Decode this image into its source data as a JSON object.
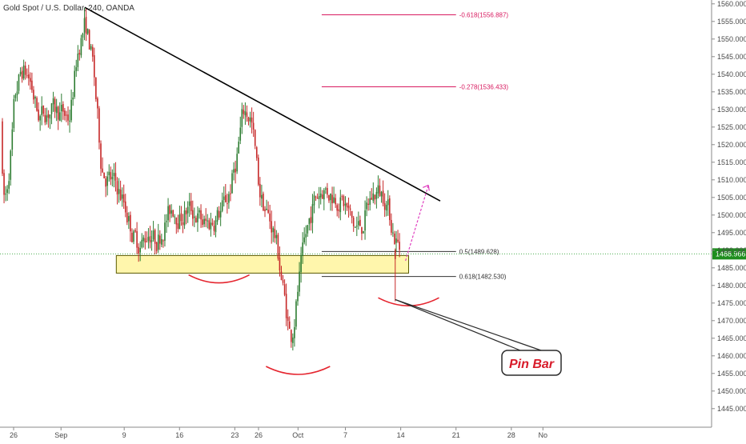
{
  "chart_data": {
    "type": "candlestick",
    "title": "Gold Spot / U.S. Dollar, 240, OANDA",
    "y_axis": {
      "ylim": [
        1440,
        1562
      ],
      "ticks": [
        1445,
        1450,
        1455,
        1460,
        1465,
        1470,
        1475,
        1480,
        1485,
        1490,
        1495,
        1500,
        1505,
        1510,
        1515,
        1520,
        1525,
        1530,
        1535,
        1540,
        1545,
        1550,
        1555,
        1560
      ],
      "tick_labels": [
        "1445.000",
        "1450.000",
        "1455.000",
        "1460.000",
        "1465.000",
        "1470.000",
        "1475.000",
        "1480.000",
        "1485.000",
        "1490.000",
        "1495.000",
        "1500.000",
        "1505.000",
        "1510.000",
        "1515.000",
        "1520.000",
        "1525.000",
        "1530.000",
        "1535.000",
        "1540.000",
        "1545.000",
        "1550.000",
        "1555.000",
        "1560.000"
      ]
    },
    "x_axis": {
      "tick_labels": [
        "26",
        "Sep",
        "9",
        "16",
        "23",
        "26",
        "Oct",
        "7",
        "14",
        "21",
        "28",
        "No"
      ],
      "tick_dates": [
        "2019-08-26",
        "2019-09-01",
        "2019-09-09",
        "2019-09-16",
        "2019-09-23",
        "2019-09-26",
        "2019-10-01",
        "2019-10-07",
        "2019-10-14",
        "2019-10-21",
        "2019-10-28",
        "2019-11-01"
      ]
    },
    "price_path": [
      {
        "date": "2019-08-26",
        "price": 1535
      },
      {
        "date": "2019-08-27",
        "price": 1542
      },
      {
        "date": "2019-08-28",
        "price": 1538
      },
      {
        "date": "2019-08-29",
        "price": 1527
      },
      {
        "date": "2019-08-30",
        "price": 1530
      },
      {
        "date": "2019-09-01",
        "price": 1529
      },
      {
        "date": "2019-09-02",
        "price": 1527
      },
      {
        "date": "2019-09-03",
        "price": 1548
      },
      {
        "date": "2019-09-04",
        "price": 1555
      },
      {
        "date": "2019-09-05",
        "price": 1541
      },
      {
        "date": "2019-09-06",
        "price": 1512
      },
      {
        "date": "2019-09-08",
        "price": 1508
      },
      {
        "date": "2019-09-09",
        "price": 1502
      },
      {
        "date": "2019-09-10",
        "price": 1494
      },
      {
        "date": "2019-09-11",
        "price": 1491
      },
      {
        "date": "2019-09-12",
        "price": 1496
      },
      {
        "date": "2019-09-13",
        "price": 1492
      },
      {
        "date": "2019-09-14",
        "price": 1498
      },
      {
        "date": "2019-09-15",
        "price": 1503
      },
      {
        "date": "2019-09-16",
        "price": 1499
      },
      {
        "date": "2019-09-17",
        "price": 1502
      },
      {
        "date": "2019-09-18",
        "price": 1500
      },
      {
        "date": "2019-09-19",
        "price": 1497
      },
      {
        "date": "2019-09-20",
        "price": 1498
      },
      {
        "date": "2019-09-21",
        "price": 1501
      },
      {
        "date": "2019-09-22",
        "price": 1505
      },
      {
        "date": "2019-09-23",
        "price": 1515
      },
      {
        "date": "2019-09-24",
        "price": 1531
      },
      {
        "date": "2019-09-25",
        "price": 1527
      },
      {
        "date": "2019-09-26",
        "price": 1505
      },
      {
        "date": "2019-09-27",
        "price": 1500
      },
      {
        "date": "2019-09-28",
        "price": 1494
      },
      {
        "date": "2019-09-29",
        "price": 1478
      },
      {
        "date": "2019-09-30",
        "price": 1463
      },
      {
        "date": "2019-10-01",
        "price": 1482
      },
      {
        "date": "2019-10-02",
        "price": 1496
      },
      {
        "date": "2019-10-03",
        "price": 1505
      },
      {
        "date": "2019-10-04",
        "price": 1508
      },
      {
        "date": "2019-10-05",
        "price": 1506
      },
      {
        "date": "2019-10-06",
        "price": 1505
      },
      {
        "date": "2019-10-07",
        "price": 1502
      },
      {
        "date": "2019-10-08",
        "price": 1496
      },
      {
        "date": "2019-10-09",
        "price": 1497
      },
      {
        "date": "2019-10-10",
        "price": 1505
      },
      {
        "date": "2019-10-11",
        "price": 1507
      },
      {
        "date": "2019-10-12",
        "price": 1505
      },
      {
        "date": "2019-10-13",
        "price": 1494
      },
      {
        "date": "2019-10-14",
        "price": 1489
      }
    ],
    "annotations": {
      "current_price": 1488.966,
      "current_price_label": "1488.966",
      "trendline": {
        "start": {
          "date": "2019-09-04",
          "price": 1559
        },
        "end": {
          "date": "2019-10-19",
          "price": 1504
        }
      },
      "support_zone": {
        "price_low": 1483.5,
        "price_high": 1488.5,
        "date_start": "2019-09-08",
        "date_end": "2019-10-15"
      },
      "fib_levels": [
        {
          "label": "-0.618(1556.887)",
          "price": 1556.887,
          "color": "#d81b60"
        },
        {
          "label": "-0.278(1536.433)",
          "price": 1536.433,
          "color": "#d81b60"
        },
        {
          "label": "0.5(1489.628)",
          "price": 1489.628,
          "color": "#333333"
        },
        {
          "label": "0.618(1482.530)",
          "price": 1482.53,
          "color": "#333333"
        }
      ],
      "callout_text": "Pin Bar",
      "projection_target": {
        "date": "2019-10-17",
        "price": 1508.5
      }
    },
    "colors": {
      "up": "#2e7d32",
      "down": "#c62828",
      "trendline": "#000000",
      "support_zone": "#fff59d",
      "support_zone_border": "#5a5a00",
      "current_price_line": "#4caf50",
      "current_price_badge": "#1e8e1e",
      "pattern_curves": "#e5252f",
      "projection_arrow": "#e040c0"
    }
  }
}
